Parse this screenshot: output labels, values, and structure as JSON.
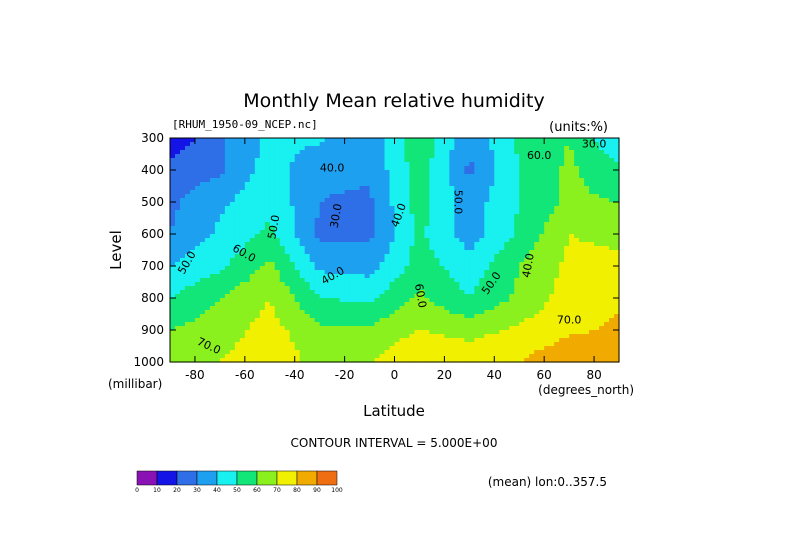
{
  "colors": [
    "#8a12b4",
    "#1414e6",
    "#2e6ee6",
    "#1ea0f0",
    "#19f0f0",
    "#12e678",
    "#8af01e",
    "#f0f000",
    "#f0aa00",
    "#f06e12",
    "#e61414"
  ],
  "chart_data": {
    "type": "heatmap",
    "title": "Monthly Mean relative humidity",
    "source_label": "[RHUM_1950-09_NCEP.nc]",
    "units_label": "(units:%)",
    "xlabel": "Latitude",
    "x_units": "(degrees_north)",
    "ylabel": "Level",
    "y_units": "(millibar)",
    "xlim": [
      -90,
      90
    ],
    "ylim": [
      1000,
      300
    ],
    "x_ticks": [
      -80,
      -60,
      -40,
      -20,
      0,
      20,
      40,
      60,
      80
    ],
    "y_ticks": [
      300,
      400,
      500,
      600,
      700,
      800,
      900,
      1000
    ],
    "contour_interval_text": "CONTOUR INTERVAL = 5.000E+00",
    "mean_text": "(mean) lon:0..357.5",
    "colorbar": {
      "ticks": [
        "0",
        "10",
        "20",
        "30",
        "40",
        "50",
        "60",
        "70",
        "80",
        "90",
        "100"
      ]
    },
    "contour_labels": [
      "30.0",
      "40.0",
      "50.0",
      "60.0",
      "70.0",
      "40.0",
      "50.0",
      "50.0",
      "40.0",
      "60.0",
      "50.0",
      "40.0",
      "30.0",
      "60.0",
      "70.0"
    ],
    "latitudes": [
      -90,
      -70,
      -50,
      -30,
      -10,
      10,
      30,
      50,
      70,
      90
    ],
    "levels": [
      300,
      400,
      500,
      600,
      700,
      800,
      900,
      1000
    ],
    "values": [
      [
        12,
        28,
        42,
        42,
        30,
        60,
        32,
        52,
        60,
        40
      ],
      [
        25,
        28,
        45,
        32,
        32,
        55,
        28,
        50,
        62,
        52
      ],
      [
        28,
        38,
        48,
        30,
        28,
        55,
        35,
        50,
        62,
        60
      ],
      [
        30,
        42,
        52,
        28,
        28,
        52,
        35,
        52,
        70,
        68
      ],
      [
        40,
        48,
        62,
        38,
        36,
        55,
        44,
        60,
        72,
        72
      ],
      [
        50,
        60,
        70,
        50,
        48,
        62,
        50,
        62,
        75,
        78
      ],
      [
        60,
        65,
        74,
        62,
        62,
        70,
        66,
        72,
        78,
        82
      ],
      [
        62,
        70,
        78,
        66,
        70,
        80,
        78,
        80,
        88,
        90
      ]
    ]
  }
}
